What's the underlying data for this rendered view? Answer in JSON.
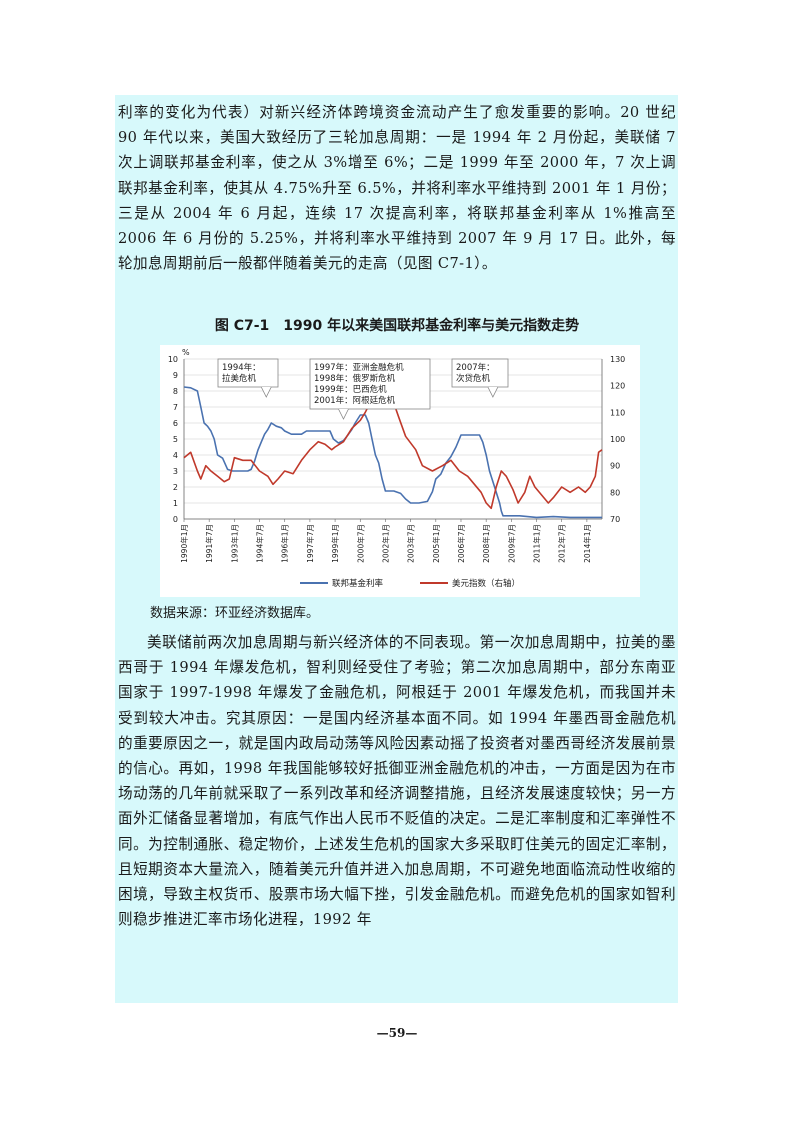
{
  "paragraphs_top": [
    "利率的变化为代表）对新兴经济体跨境资金流动产生了愈发重要的影响。20 世纪 90 年代以来，美国大致经历了三轮加息周期：一是 1994 年 2 月份起，美联储 7 次上调联邦基金利率，使之从 3%增至 6%；二是 1999 年至 2000 年，7 次上调联邦基金利率，使其从 4.75%升至 6.5%，并将利率水平维持到 2001 年 1 月份；三是从 2004 年 6 月起，连续 17 次提高利率，将联邦基金利率从 1%推高至 2006 年 6 月份的 5.25%，并将利率水平维持到 2007 年 9 月 17 日。此外，每轮加息周期前后一般都伴随着美元的走高（见图 C7-1）。"
  ],
  "figure_title": "图 C7-1　1990 年以来美国联邦基金利率与美元指数走势",
  "source_note": "数据来源：环亚经济数据库。",
  "paragraphs_bottom": [
    "美联储前两次加息周期与新兴经济体的不同表现。第一次加息周期中，拉美的墨西哥于 1994 年爆发危机，智利则经受住了考验；第二次加息周期中，部分东南亚国家于 1997-1998 年爆发了金融危机，阿根廷于 2001 年爆发危机，而我国并未受到较大冲击。究其原因：一是国内经济基本面不同。如 1994 年墨西哥金融危机的重要原因之一，就是国内政局动荡等风险因素动摇了投资者对墨西哥经济发展前景的信心。再如，1998 年我国能够较好抵御亚洲金融危机的冲击，一方面是因为在市场动荡的几年前就采取了一系列改革和经济调整措施，且经济发展速度较快；另一方面外汇储备显著增加，有底气作出人民币不贬值的决定。二是汇率制度和汇率弹性不同。为控制通胀、稳定物价，上述发生危机的国家大多采取盯住美元的固定汇率制，且短期资本大量流入，随着美元升值并进入加息周期，不可避免地面临流动性收缩的困境，导致主权货币、股票市场大幅下挫，引发金融危机。而避免危机的国家如智利则稳步推进汇率市场化进程，1992 年"
  ],
  "page_number": "—59—",
  "chart_data": {
    "type": "line",
    "title": "图 C7-1　1990 年以来美国联邦基金利率与美元指数走势",
    "y_left_unit": "%",
    "y_left_range": [
      0,
      10
    ],
    "y_left_ticks": [
      "0",
      "1",
      "2",
      "3",
      "4",
      "5",
      "6",
      "7",
      "8",
      "9",
      "10"
    ],
    "y_right_range": [
      70,
      130
    ],
    "y_right_ticks": [
      "70",
      "80",
      "90",
      "100",
      "110",
      "120",
      "130"
    ],
    "x_range": [
      1990.0,
      2014.9
    ],
    "x_tick_labels": [
      "1990年1月",
      "1991年7月",
      "1993年1月",
      "1994年7月",
      "1996年1月",
      "1997年7月",
      "1999年1月",
      "2000年7月",
      "2002年1月",
      "2003年7月",
      "2005年1月",
      "2006年7月",
      "2008年1月",
      "2009年7月",
      "2011年1月",
      "2012年7月",
      "2014年1月"
    ],
    "x_tick_values": [
      1990.0,
      1991.5,
      1993.0,
      1994.5,
      1996.0,
      1997.5,
      1999.0,
      2000.5,
      2002.0,
      2003.5,
      2005.0,
      2006.5,
      2008.0,
      2009.5,
      2011.0,
      2012.5,
      2014.0
    ],
    "gridlines": true,
    "legend_position": "bottom",
    "annotations": [
      {
        "lines": [
          "1994年：",
          "拉美危机"
        ],
        "year": 1994.9
      },
      {
        "lines": [
          "1997年：亚洲金融危机",
          "1998年：俄罗斯危机",
          "1999年：巴西危机",
          "2001年：阿根廷危机"
        ],
        "year": 1999.5
      },
      {
        "lines": [
          "2007年：",
          "次贷危机"
        ],
        "year": 2008.4
      }
    ],
    "series": [
      {
        "name": "联邦基金利率",
        "axis": "left",
        "color": "#4a72b0",
        "x": [
          1990.0,
          1990.4,
          1990.8,
          1991.0,
          1991.2,
          1991.4,
          1991.6,
          1991.8,
          1992.0,
          1992.3,
          1992.6,
          1992.9,
          1993.3,
          1993.8,
          1994.0,
          1994.2,
          1994.4,
          1994.6,
          1994.8,
          1995.0,
          1995.2,
          1995.5,
          1995.8,
          1996.0,
          1996.4,
          1996.8,
          1997.0,
          1997.3,
          1997.6,
          1998.0,
          1998.4,
          1998.7,
          1998.9,
          1999.2,
          1999.5,
          1999.8,
          2000.0,
          2000.2,
          2000.5,
          2000.8,
          2001.0,
          2001.2,
          2001.4,
          2001.6,
          2001.8,
          2002.0,
          2002.5,
          2002.9,
          2003.2,
          2003.5,
          2004.0,
          2004.5,
          2004.8,
          2005.0,
          2005.3,
          2005.6,
          2005.9,
          2006.2,
          2006.5,
          2006.8,
          2007.2,
          2007.6,
          2007.8,
          2008.0,
          2008.2,
          2008.5,
          2008.8,
          2008.9,
          2009.0,
          2010.0,
          2011.0,
          2012.0,
          2013.0,
          2014.0,
          2014.9
        ],
        "y": [
          8.25,
          8.2,
          8.0,
          7.0,
          6.0,
          5.8,
          5.5,
          5.0,
          4.0,
          3.8,
          3.1,
          3.0,
          3.0,
          3.0,
          3.1,
          3.6,
          4.3,
          4.8,
          5.3,
          5.6,
          6.0,
          5.8,
          5.7,
          5.5,
          5.3,
          5.3,
          5.3,
          5.5,
          5.5,
          5.5,
          5.5,
          5.5,
          5.0,
          4.75,
          4.9,
          5.3,
          5.6,
          6.0,
          6.5,
          6.5,
          6.0,
          5.0,
          4.0,
          3.5,
          2.5,
          1.75,
          1.75,
          1.6,
          1.25,
          1.0,
          1.0,
          1.1,
          1.7,
          2.5,
          2.8,
          3.5,
          3.9,
          4.5,
          5.25,
          5.25,
          5.25,
          5.25,
          4.8,
          4.0,
          3.0,
          2.0,
          1.0,
          0.5,
          0.2,
          0.2,
          0.1,
          0.15,
          0.1,
          0.1,
          0.1
        ]
      },
      {
        "name": "美元指数（右轴）",
        "axis": "right",
        "color": "#c0392b",
        "x": [
          1990.0,
          1990.4,
          1990.8,
          1991.0,
          1991.3,
          1991.6,
          1992.0,
          1992.4,
          1992.7,
          1993.0,
          1993.5,
          1994.0,
          1994.5,
          1995.0,
          1995.3,
          1995.6,
          1996.0,
          1996.5,
          1997.0,
          1997.5,
          1998.0,
          1998.4,
          1998.8,
          1999.0,
          1999.5,
          2000.0,
          2000.5,
          2000.8,
          2001.2,
          2001.6,
          2002.0,
          2002.3,
          2002.8,
          2003.2,
          2003.8,
          2004.2,
          2004.8,
          2005.4,
          2005.9,
          2006.4,
          2006.9,
          2007.3,
          2007.7,
          2008.0,
          2008.3,
          2008.6,
          2008.9,
          2009.2,
          2009.6,
          2009.9,
          2010.3,
          2010.6,
          2010.9,
          2011.3,
          2011.7,
          2012.0,
          2012.5,
          2013.0,
          2013.5,
          2013.9,
          2014.2,
          2014.5,
          2014.7,
          2014.9
        ],
        "y": [
          93,
          95,
          88,
          85,
          90,
          88,
          86,
          84,
          85,
          93,
          92,
          92,
          88,
          86,
          83,
          85,
          88,
          87,
          92,
          96,
          99,
          98,
          96,
          97,
          99,
          104,
          107,
          110,
          115,
          117,
          119,
          117,
          108,
          101,
          96,
          90,
          88,
          90,
          92,
          88,
          86,
          83,
          80,
          76,
          74,
          82,
          88,
          86,
          81,
          76,
          80,
          86,
          82,
          79,
          76,
          78,
          82,
          80,
          82,
          80,
          82,
          86,
          95,
          96
        ]
      }
    ]
  }
}
